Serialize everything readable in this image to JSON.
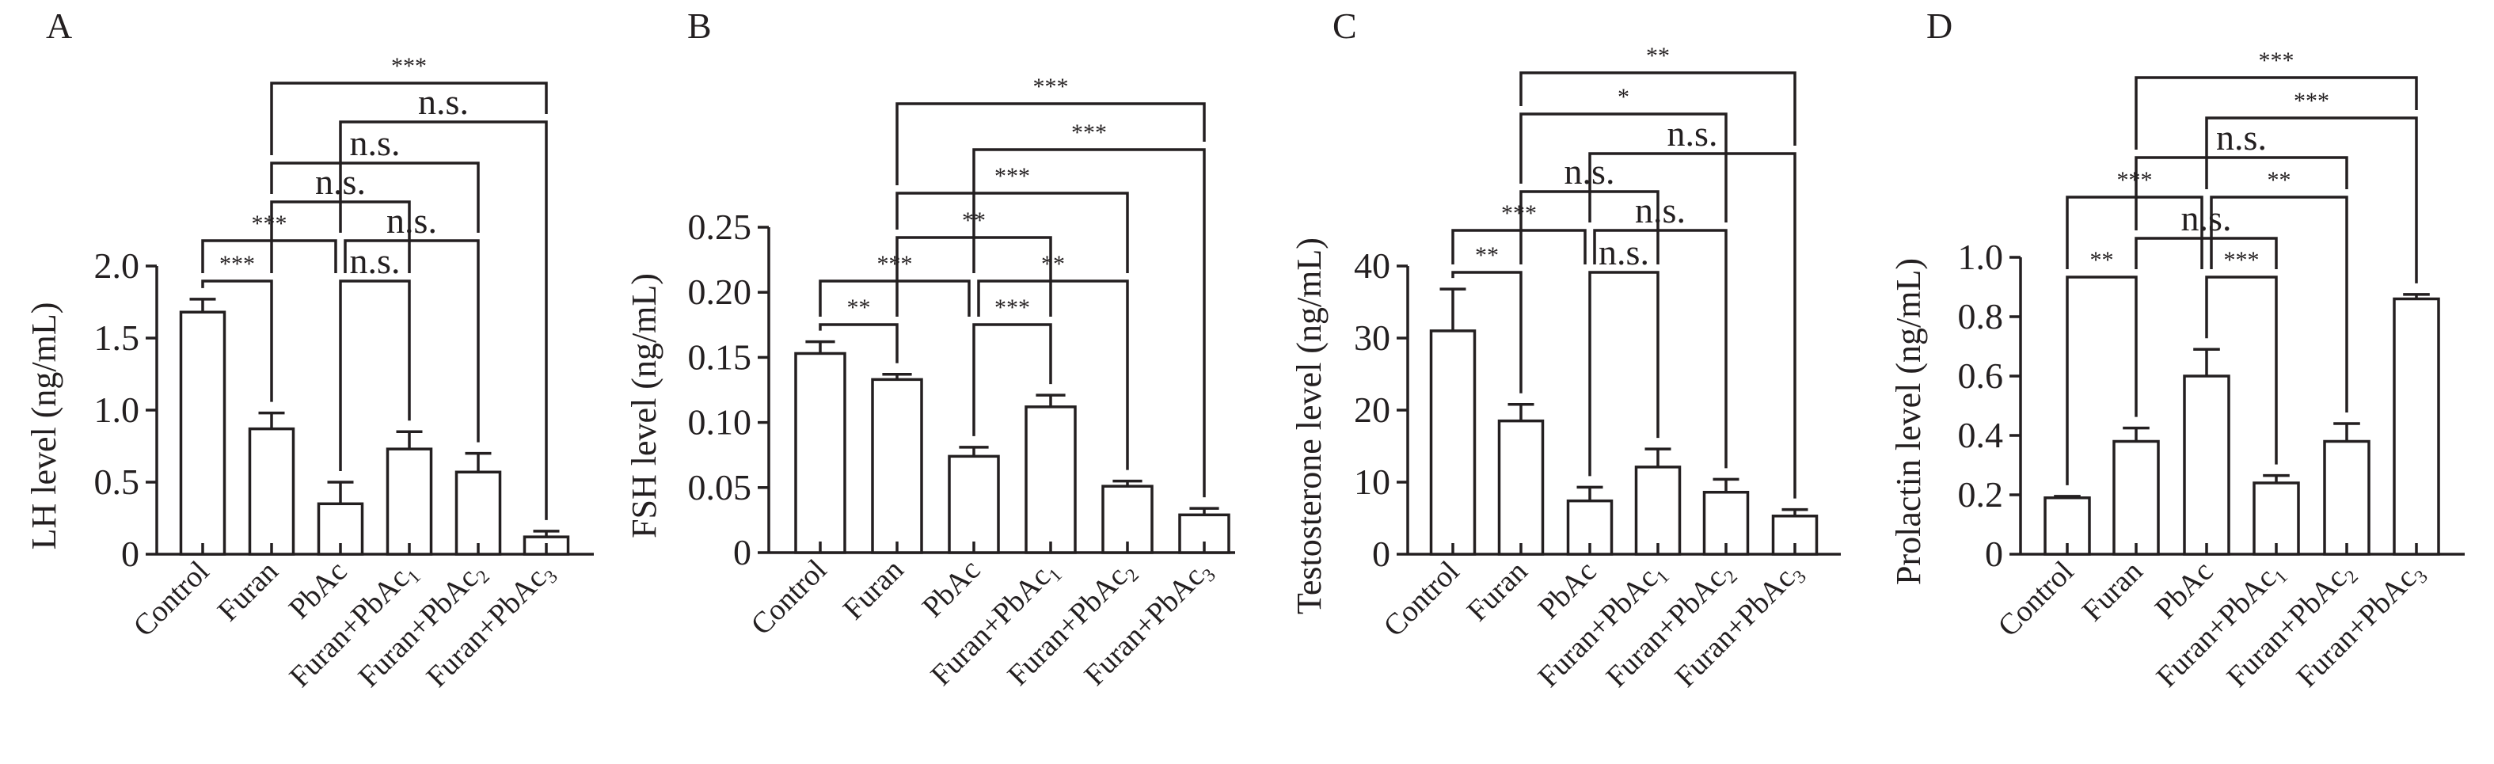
{
  "chart_data": [
    {
      "type": "bar",
      "panel": "A",
      "ylabel": "LH level (ng/mL)",
      "ylim": [
        0,
        2.0
      ],
      "yticks": [
        "0",
        "0.5",
        "1.0",
        "1.5",
        "2.0"
      ],
      "ytick_values": [
        0,
        0.5,
        1.0,
        1.5,
        2.0
      ],
      "categories": [
        {
          "label": "Control",
          "sub": ""
        },
        {
          "label": "Furan",
          "sub": ""
        },
        {
          "label": "PbAc",
          "sub": ""
        },
        {
          "label": "Furan+PbAc",
          "sub": "1"
        },
        {
          "label": "Furan+PbAc",
          "sub": "2"
        },
        {
          "label": "Furan+PbAc",
          "sub": "3"
        }
      ],
      "values": [
        1.68,
        0.87,
        0.35,
        0.73,
        0.57,
        0.12
      ],
      "errors": [
        0.09,
        0.11,
        0.15,
        0.12,
        0.13,
        0.04
      ],
      "comparisons": [
        {
          "from": 0,
          "to": 1,
          "level": 0,
          "label": "***"
        },
        {
          "from": 2,
          "to": 3,
          "level": 0,
          "label": "n.s."
        },
        {
          "from": 0,
          "to": 2,
          "level": 1,
          "label": "***"
        },
        {
          "from": 2,
          "to": 4,
          "level": 1,
          "label": "n.s."
        },
        {
          "from": 1,
          "to": 3,
          "level": 2,
          "label": "n.s."
        },
        {
          "from": 1,
          "to": 4,
          "level": 3,
          "label": "n.s."
        },
        {
          "from": 2,
          "to": 5,
          "level": 4,
          "label": "n.s."
        },
        {
          "from": 1,
          "to": 5,
          "level": 5,
          "label": "***"
        }
      ]
    },
    {
      "type": "bar",
      "panel": "B",
      "ylabel": "FSH level (ng/mL)",
      "ylim": [
        0,
        0.25
      ],
      "yticks": [
        "0",
        "0.05",
        "0.10",
        "0.15",
        "0.20",
        "0.25"
      ],
      "ytick_values": [
        0,
        0.05,
        0.1,
        0.15,
        0.2,
        0.25
      ],
      "categories": [
        {
          "label": "Control",
          "sub": ""
        },
        {
          "label": "Furan",
          "sub": ""
        },
        {
          "label": "PbAc",
          "sub": ""
        },
        {
          "label": "Furan+PbAc",
          "sub": "1"
        },
        {
          "label": "Furan+PbAc",
          "sub": "2"
        },
        {
          "label": "Furan+PbAc",
          "sub": "3"
        }
      ],
      "values": [
        0.153,
        0.133,
        0.074,
        0.112,
        0.051,
        0.029
      ],
      "errors": [
        0.009,
        0.004,
        0.007,
        0.009,
        0.004,
        0.005
      ],
      "comparisons": [
        {
          "from": 0,
          "to": 1,
          "level": 0,
          "label": "**"
        },
        {
          "from": 2,
          "to": 3,
          "level": 0,
          "label": "***"
        },
        {
          "from": 0,
          "to": 2,
          "level": 1,
          "label": "***"
        },
        {
          "from": 2,
          "to": 4,
          "level": 1,
          "label": "**"
        },
        {
          "from": 1,
          "to": 3,
          "level": 2,
          "label": "**"
        },
        {
          "from": 1,
          "to": 4,
          "level": 3,
          "label": "***"
        },
        {
          "from": 2,
          "to": 5,
          "level": 4,
          "label": "***"
        },
        {
          "from": 1,
          "to": 5,
          "level": 5,
          "label": "***"
        }
      ]
    },
    {
      "type": "bar",
      "panel": "C",
      "ylabel": "Testosterone level (ng/mL)",
      "ylim": [
        0,
        40
      ],
      "yticks": [
        "0",
        "10",
        "20",
        "30",
        "40"
      ],
      "ytick_values": [
        0,
        10,
        20,
        30,
        40
      ],
      "categories": [
        {
          "label": "Control",
          "sub": ""
        },
        {
          "label": "Furan",
          "sub": ""
        },
        {
          "label": "PbAc",
          "sub": ""
        },
        {
          "label": "Furan+PbAc",
          "sub": "1"
        },
        {
          "label": "Furan+PbAc",
          "sub": "2"
        },
        {
          "label": "Furan+PbAc",
          "sub": "3"
        }
      ],
      "values": [
        31.0,
        18.5,
        7.4,
        12.1,
        8.6,
        5.3
      ],
      "errors": [
        5.8,
        2.3,
        1.9,
        2.5,
        1.8,
        0.9
      ],
      "comparisons": [
        {
          "from": 0,
          "to": 1,
          "level": 0,
          "label": "**"
        },
        {
          "from": 2,
          "to": 3,
          "level": 0,
          "label": "n.s."
        },
        {
          "from": 0,
          "to": 2,
          "level": 1,
          "label": "***"
        },
        {
          "from": 2,
          "to": 4,
          "level": 1,
          "label": "n.s."
        },
        {
          "from": 1,
          "to": 3,
          "level": 2,
          "label": "n.s."
        },
        {
          "from": 2,
          "to": 5,
          "level": 3,
          "label": "n.s."
        },
        {
          "from": 1,
          "to": 4,
          "level": 4,
          "label": "*"
        },
        {
          "from": 1,
          "to": 5,
          "level": 5,
          "label": "**"
        }
      ]
    },
    {
      "type": "bar",
      "panel": "D",
      "ylabel": "Prolactin level (ng/mL)",
      "ylim": [
        0,
        1.0
      ],
      "yticks": [
        "0",
        "0.2",
        "0.4",
        "0.6",
        "0.8",
        "1.0"
      ],
      "ytick_values": [
        0,
        0.2,
        0.4,
        0.6,
        0.8,
        1.0
      ],
      "categories": [
        {
          "label": "Control",
          "sub": ""
        },
        {
          "label": "Furan",
          "sub": ""
        },
        {
          "label": "PbAc",
          "sub": ""
        },
        {
          "label": "Furan+PbAc",
          "sub": "1"
        },
        {
          "label": "Furan+PbAc",
          "sub": "2"
        },
        {
          "label": "Furan+PbAc",
          "sub": "3"
        }
      ],
      "values": [
        0.19,
        0.38,
        0.6,
        0.24,
        0.38,
        0.86
      ],
      "errors": [
        0.005,
        0.045,
        0.09,
        0.025,
        0.06,
        0.015
      ],
      "comparisons": [
        {
          "from": 0,
          "to": 1,
          "level": 0,
          "label": "**"
        },
        {
          "from": 2,
          "to": 3,
          "level": 0,
          "label": "***"
        },
        {
          "from": 1,
          "to": 3,
          "level": 1,
          "label": "n.s."
        },
        {
          "from": 0,
          "to": 2,
          "level": 2,
          "label": "***"
        },
        {
          "from": 2,
          "to": 4,
          "level": 2,
          "label": "**"
        },
        {
          "from": 1,
          "to": 4,
          "level": 3,
          "label": "n.s."
        },
        {
          "from": 2,
          "to": 5,
          "level": 4,
          "label": "***"
        },
        {
          "from": 1,
          "to": 5,
          "level": 5,
          "label": "***"
        }
      ]
    }
  ]
}
